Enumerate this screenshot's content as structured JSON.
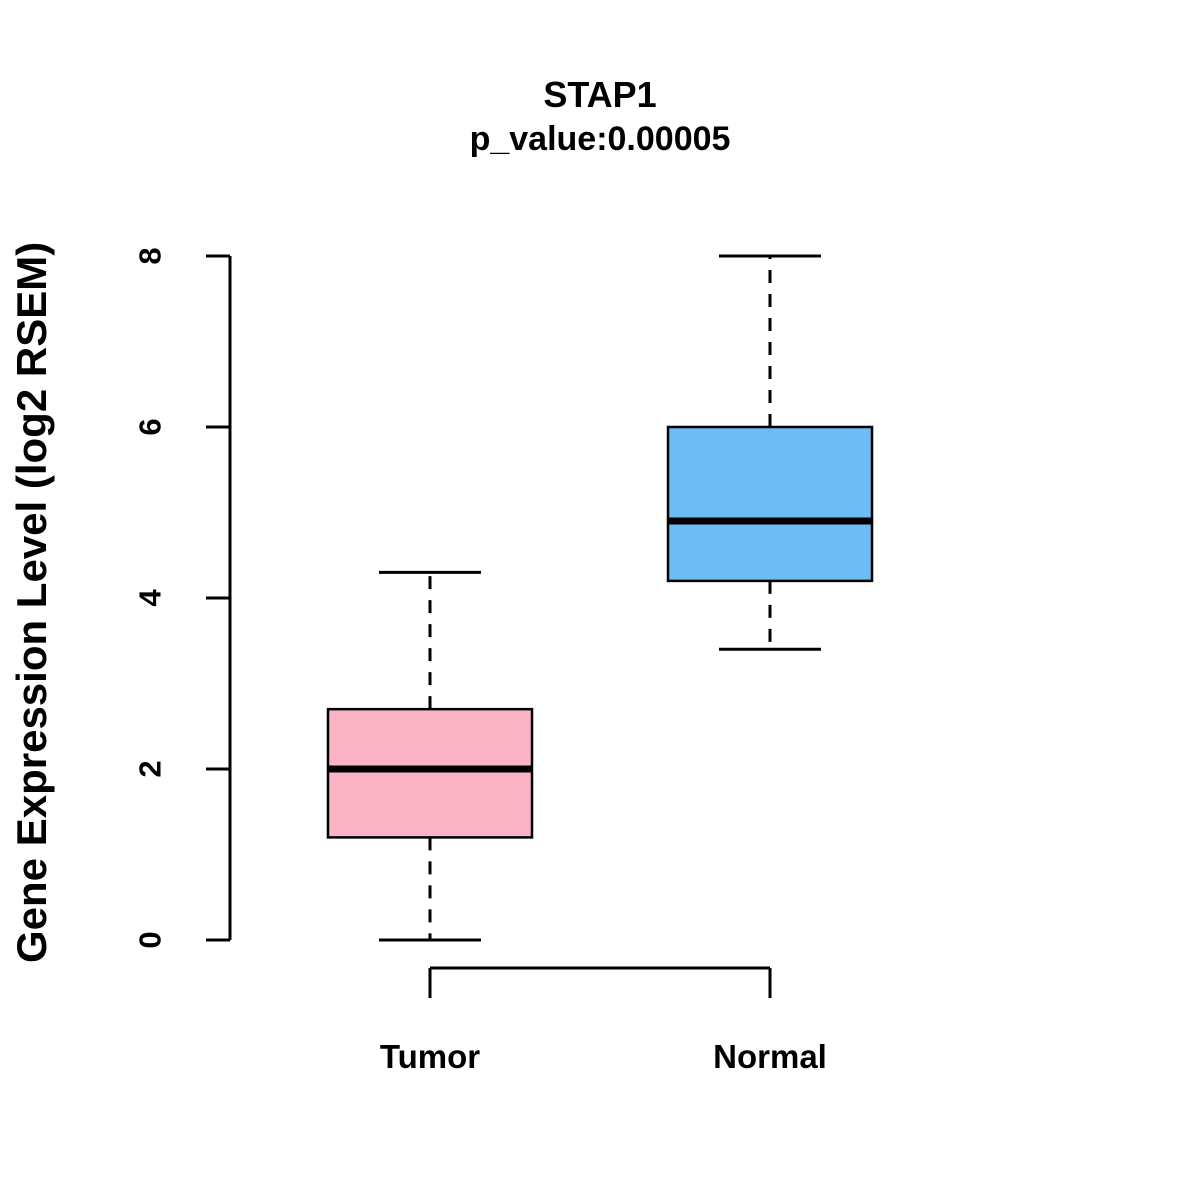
{
  "title": "STAP1",
  "subtitle": "p_value:0.00005",
  "ylabel": "Gene Expression Level (log2 RSEM)",
  "chart_data": {
    "type": "boxplot",
    "title": "STAP1",
    "subtitle": "p_value:0.00005",
    "ylabel": "Gene Expression Level (log2 RSEM)",
    "xlabel": "",
    "categories": [
      "Tumor",
      "Normal"
    ],
    "series": [
      {
        "name": "Tumor",
        "min": 0.0,
        "q1": 1.2,
        "median": 2.0,
        "q3": 2.7,
        "max": 4.3,
        "color": "#FBB4C6"
      },
      {
        "name": "Normal",
        "min": 3.4,
        "q1": 4.2,
        "median": 4.9,
        "q3": 6.0,
        "max": 8.0,
        "color": "#6DBCF5"
      }
    ],
    "yticks": [
      0,
      2,
      4,
      6,
      8
    ],
    "ylim": [
      0,
      8
    ],
    "grid": false,
    "legend": "none",
    "box_edge_color": "#000000",
    "median_color": "#000000",
    "whisker_style": "dashed"
  }
}
